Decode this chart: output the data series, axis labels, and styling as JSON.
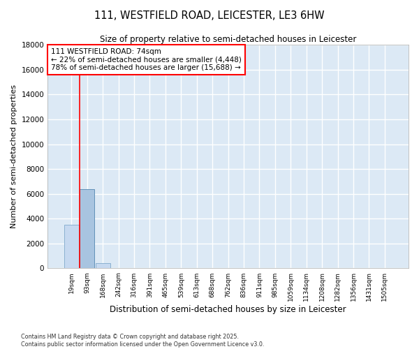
{
  "title_line1": "111, WESTFIELD ROAD, LEICESTER, LE3 6HW",
  "title_line2": "Size of property relative to semi-detached houses in Leicester",
  "xlabel": "Distribution of semi-detached houses by size in Leicester",
  "ylabel": "Number of semi-detached properties",
  "annotation_title": "111 WESTFIELD ROAD: 74sqm",
  "annotation_line2": "← 22% of semi-detached houses are smaller (4,448)",
  "annotation_line3": "78% of semi-detached houses are larger (15,688) →",
  "categories": [
    "19sqm",
    "93sqm",
    "168sqm",
    "242sqm",
    "316sqm",
    "391sqm",
    "465sqm",
    "539sqm",
    "613sqm",
    "688sqm",
    "762sqm",
    "836sqm",
    "911sqm",
    "985sqm",
    "1059sqm",
    "1134sqm",
    "1208sqm",
    "1282sqm",
    "1356sqm",
    "1431sqm",
    "1505sqm"
  ],
  "values": [
    3500,
    6400,
    400,
    50,
    5,
    2,
    1,
    0,
    0,
    0,
    0,
    0,
    0,
    0,
    0,
    0,
    0,
    0,
    0,
    0,
    0
  ],
  "bar_color": "#c6d9f0",
  "bar_edgecolor": "#8ab0d0",
  "highlight_bar_index": 1,
  "highlight_bar_color": "#a8c4e0",
  "highlight_bar_edgecolor": "#6090b8",
  "figure_bg": "#ffffff",
  "axes_bg": "#dce9f5",
  "grid_color": "#ffffff",
  "ylim": [
    0,
    18000
  ],
  "yticks": [
    0,
    2000,
    4000,
    6000,
    8000,
    10000,
    12000,
    14000,
    16000,
    18000
  ],
  "vline_x": 0.5,
  "footer_line1": "Contains HM Land Registry data © Crown copyright and database right 2025.",
  "footer_line2": "Contains public sector information licensed under the Open Government Licence v3.0."
}
